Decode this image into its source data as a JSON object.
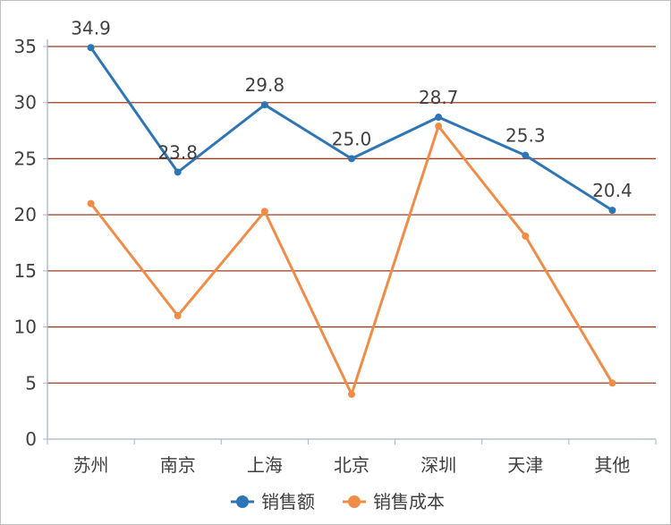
{
  "chart_data": {
    "type": "line",
    "categories": [
      "苏州",
      "南京",
      "上海",
      "北京",
      "深圳",
      "天津",
      "其他"
    ],
    "series": [
      {
        "name": "销售额",
        "color": "#2e75b6",
        "values": [
          34.9,
          23.8,
          29.8,
          25.0,
          28.7,
          25.3,
          20.4
        ],
        "data_labels": [
          "34.9",
          "23.8",
          "29.8",
          "25.0",
          "28.7",
          "25.3",
          "20.4"
        ]
      },
      {
        "name": "销售成本",
        "color": "#f08c46",
        "values": [
          21.0,
          11.0,
          20.3,
          4.0,
          27.9,
          18.1,
          5.0
        ]
      }
    ],
    "ylim": [
      0,
      35
    ],
    "yticks": [
      "0",
      "5",
      "10",
      "15",
      "20",
      "25",
      "30",
      "35"
    ],
    "grid": true,
    "grid_color": "#9c3b1f",
    "legend_position": "bottom"
  }
}
